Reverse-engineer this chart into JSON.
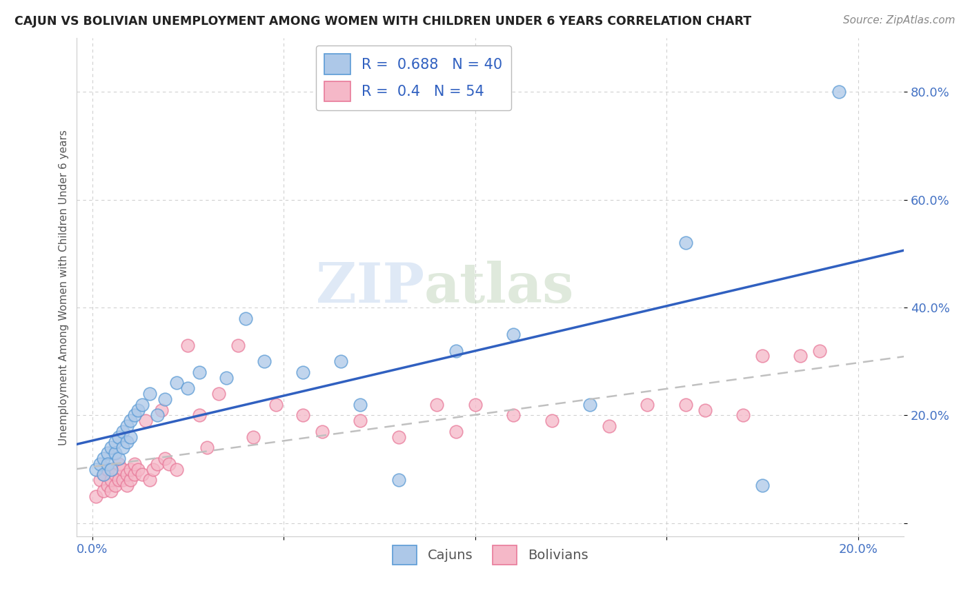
{
  "title": "CAJUN VS BOLIVIAN UNEMPLOYMENT AMONG WOMEN WITH CHILDREN UNDER 6 YEARS CORRELATION CHART",
  "source": "Source: ZipAtlas.com",
  "ylabel": "Unemployment Among Women with Children Under 6 years",
  "background_color": "#ffffff",
  "cajun_fill_color": "#adc8e8",
  "bolivian_fill_color": "#f5b8c8",
  "cajun_edge_color": "#5b9bd5",
  "bolivian_edge_color": "#e87a9a",
  "cajun_line_color": "#3060c0",
  "bolivian_line_color": "#c0c0c0",
  "cajun_R": 0.688,
  "cajun_N": 40,
  "bolivian_R": 0.4,
  "bolivian_N": 54,
  "xlim": [
    -0.004,
    0.212
  ],
  "ylim": [
    -0.025,
    0.9
  ],
  "xticks": [
    0.0,
    0.05,
    0.1,
    0.15,
    0.2
  ],
  "xtick_labels": [
    "0.0%",
    "",
    "",
    "",
    "20.0%"
  ],
  "yticks": [
    0.0,
    0.2,
    0.4,
    0.6,
    0.8
  ],
  "ytick_labels": [
    "",
    "20.0%",
    "40.0%",
    "60.0%",
    "80.0%"
  ],
  "cajun_x": [
    0.001,
    0.002,
    0.003,
    0.003,
    0.004,
    0.004,
    0.005,
    0.005,
    0.006,
    0.006,
    0.007,
    0.007,
    0.008,
    0.008,
    0.009,
    0.009,
    0.01,
    0.01,
    0.011,
    0.012,
    0.013,
    0.015,
    0.017,
    0.019,
    0.022,
    0.025,
    0.028,
    0.035,
    0.04,
    0.045,
    0.055,
    0.065,
    0.07,
    0.08,
    0.095,
    0.11,
    0.13,
    0.155,
    0.175,
    0.195
  ],
  "cajun_y": [
    0.1,
    0.11,
    0.12,
    0.09,
    0.13,
    0.11,
    0.14,
    0.1,
    0.13,
    0.15,
    0.12,
    0.16,
    0.14,
    0.17,
    0.15,
    0.18,
    0.16,
    0.19,
    0.2,
    0.21,
    0.22,
    0.24,
    0.2,
    0.23,
    0.26,
    0.25,
    0.28,
    0.27,
    0.38,
    0.3,
    0.28,
    0.3,
    0.22,
    0.08,
    0.32,
    0.35,
    0.22,
    0.52,
    0.07,
    0.8
  ],
  "bolivian_x": [
    0.001,
    0.002,
    0.003,
    0.003,
    0.004,
    0.004,
    0.005,
    0.005,
    0.006,
    0.006,
    0.007,
    0.007,
    0.008,
    0.008,
    0.009,
    0.009,
    0.01,
    0.01,
    0.011,
    0.011,
    0.012,
    0.013,
    0.014,
    0.015,
    0.016,
    0.017,
    0.018,
    0.019,
    0.02,
    0.022,
    0.025,
    0.028,
    0.03,
    0.033,
    0.038,
    0.042,
    0.048,
    0.055,
    0.06,
    0.07,
    0.08,
    0.09,
    0.095,
    0.1,
    0.11,
    0.12,
    0.135,
    0.145,
    0.155,
    0.16,
    0.17,
    0.175,
    0.185,
    0.19
  ],
  "bolivian_y": [
    0.05,
    0.08,
    0.06,
    0.09,
    0.07,
    0.1,
    0.06,
    0.08,
    0.07,
    0.09,
    0.08,
    0.11,
    0.08,
    0.1,
    0.07,
    0.09,
    0.08,
    0.1,
    0.09,
    0.11,
    0.1,
    0.09,
    0.19,
    0.08,
    0.1,
    0.11,
    0.21,
    0.12,
    0.11,
    0.1,
    0.33,
    0.2,
    0.14,
    0.24,
    0.33,
    0.16,
    0.22,
    0.2,
    0.17,
    0.19,
    0.16,
    0.22,
    0.17,
    0.22,
    0.2,
    0.19,
    0.18,
    0.22,
    0.22,
    0.21,
    0.2,
    0.31,
    0.31,
    0.32
  ],
  "cajun_line_x_start": -0.004,
  "cajun_line_x_end": 0.212,
  "bolivian_line_x_start": -0.004,
  "bolivian_line_x_end": 0.212,
  "watermark_text": "ZIPatlas",
  "watermark_zip_color": "#c8d8ee",
  "watermark_atlas_color": "#c8d8b0"
}
